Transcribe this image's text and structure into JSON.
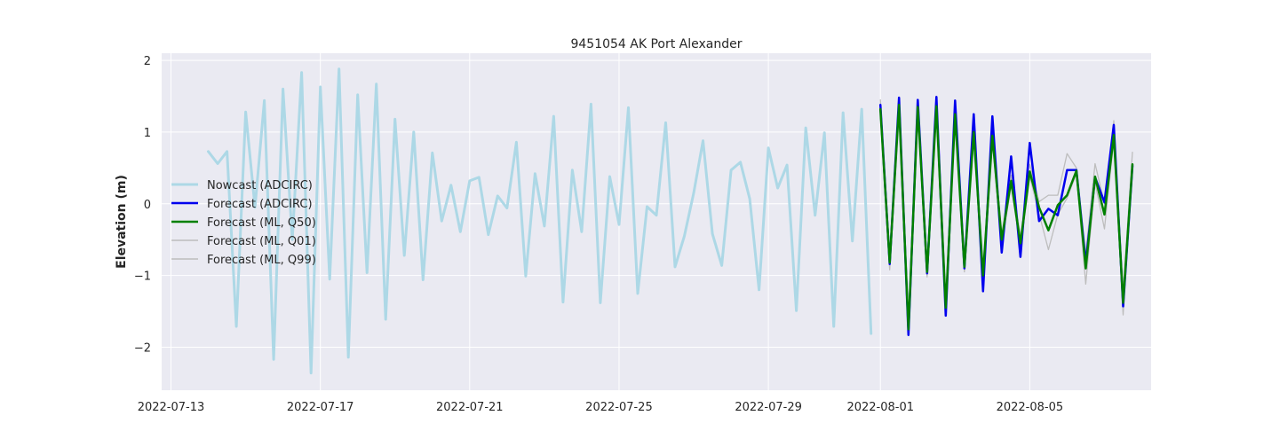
{
  "chart_data": {
    "type": "line",
    "title": "9451054 AK Port Alexander",
    "xlabel": "",
    "ylabel": "Elevation (m)",
    "x_type": "date",
    "xlim": [
      "2022-07-12T18:00",
      "2022-08-08T06:00"
    ],
    "ylim": [
      -2.6,
      2.1
    ],
    "x_ticks": [
      "2022-07-13",
      "2022-07-17",
      "2022-07-21",
      "2022-07-25",
      "2022-07-29",
      "2022-08-01",
      "2022-08-05"
    ],
    "y_ticks": [
      -2,
      -1,
      0,
      1,
      2
    ],
    "y_tick_labels": [
      "−2",
      "−1",
      "0",
      "1",
      "2"
    ],
    "grid": true,
    "legend_position": "center-left",
    "series": [
      {
        "name": "Nowcast (ADCIRC)",
        "color": "#add8e6",
        "x": [
          "2022-07-14T00:00",
          "2022-07-14T06:00",
          "2022-07-14T12:00",
          "2022-07-14T18:00",
          "2022-07-15T00:00",
          "2022-07-15T06:00",
          "2022-07-15T12:00",
          "2022-07-15T18:00",
          "2022-07-16T00:00",
          "2022-07-16T06:00",
          "2022-07-16T12:00",
          "2022-07-16T18:00",
          "2022-07-17T00:00",
          "2022-07-17T06:00",
          "2022-07-17T12:00",
          "2022-07-17T18:00",
          "2022-07-18T00:00",
          "2022-07-18T06:00",
          "2022-07-18T12:00",
          "2022-07-18T18:00",
          "2022-07-19T00:00",
          "2022-07-19T06:00",
          "2022-07-19T12:00",
          "2022-07-19T18:00",
          "2022-07-20T00:00",
          "2022-07-20T06:00",
          "2022-07-20T12:00",
          "2022-07-20T18:00",
          "2022-07-21T00:00",
          "2022-07-21T06:00",
          "2022-07-21T12:00",
          "2022-07-21T18:00",
          "2022-07-22T00:00",
          "2022-07-22T06:00",
          "2022-07-22T12:00",
          "2022-07-22T18:00",
          "2022-07-23T00:00",
          "2022-07-23T06:00",
          "2022-07-23T12:00",
          "2022-07-23T18:00",
          "2022-07-24T00:00",
          "2022-07-24T06:00",
          "2022-07-24T12:00",
          "2022-07-24T18:00",
          "2022-07-25T00:00",
          "2022-07-25T06:00",
          "2022-07-25T12:00",
          "2022-07-25T18:00",
          "2022-07-26T00:00",
          "2022-07-26T06:00",
          "2022-07-26T12:00",
          "2022-07-26T18:00",
          "2022-07-27T00:00",
          "2022-07-27T06:00",
          "2022-07-27T12:00",
          "2022-07-27T18:00",
          "2022-07-28T00:00",
          "2022-07-28T06:00",
          "2022-07-28T12:00",
          "2022-07-28T18:00",
          "2022-07-29T00:00",
          "2022-07-29T06:00",
          "2022-07-29T12:00",
          "2022-07-29T18:00",
          "2022-07-30T00:00",
          "2022-07-30T06:00",
          "2022-07-30T12:00",
          "2022-07-30T18:00",
          "2022-07-31T00:00",
          "2022-07-31T06:00",
          "2022-07-31T12:00",
          "2022-07-31T18:00"
        ],
        "y": [
          0.73,
          0.56,
          0.73,
          -1.71,
          1.28,
          -0.05,
          1.44,
          -2.17,
          1.6,
          -0.5,
          1.83,
          -2.36,
          1.63,
          -1.05,
          1.88,
          -2.14,
          1.52,
          -0.96,
          1.67,
          -1.61,
          1.18,
          -0.72,
          1.0,
          -1.06,
          0.71,
          -0.24,
          0.26,
          -0.39,
          0.32,
          0.37,
          -0.43,
          0.11,
          -0.06,
          0.86,
          -1.01,
          0.42,
          -0.31,
          1.22,
          -1.37,
          0.47,
          -0.39,
          1.39,
          -1.38,
          0.38,
          -0.29,
          1.34,
          -1.25,
          -0.04,
          -0.16,
          1.13,
          -0.88,
          -0.45,
          0.15,
          0.88,
          -0.42,
          -0.86,
          0.47,
          0.58,
          0.07,
          -1.2,
          0.78,
          0.22,
          0.54,
          -1.49,
          1.06,
          -0.16,
          0.99,
          -1.71,
          1.27,
          -0.52,
          1.32,
          -1.81
        ]
      },
      {
        "name": "Forecast (ADCIRC)",
        "color": "#0000ee",
        "x": [
          "2022-08-01T00:00",
          "2022-08-01T06:00",
          "2022-08-01T12:00",
          "2022-08-01T18:00",
          "2022-08-02T00:00",
          "2022-08-02T06:00",
          "2022-08-02T12:00",
          "2022-08-02T18:00",
          "2022-08-03T00:00",
          "2022-08-03T06:00",
          "2022-08-03T12:00",
          "2022-08-03T18:00",
          "2022-08-04T00:00",
          "2022-08-04T06:00",
          "2022-08-04T12:00",
          "2022-08-04T18:00",
          "2022-08-05T00:00",
          "2022-08-05T06:00",
          "2022-08-05T12:00",
          "2022-08-05T18:00",
          "2022-08-06T00:00",
          "2022-08-06T06:00",
          "2022-08-06T12:00",
          "2022-08-06T18:00",
          "2022-08-07T00:00",
          "2022-08-07T06:00",
          "2022-08-07T12:00",
          "2022-08-07T18:00"
        ],
        "y": [
          1.38,
          -0.84,
          1.48,
          -1.83,
          1.45,
          -0.97,
          1.49,
          -1.56,
          1.44,
          -0.9,
          1.25,
          -1.22,
          1.22,
          -0.68,
          0.66,
          -0.74,
          0.85,
          -0.24,
          -0.07,
          -0.16,
          0.47,
          0.47,
          -0.82,
          0.37,
          0.02,
          1.1,
          -1.43,
          0.53
        ]
      },
      {
        "name": "Forecast (ML, Q50)",
        "color": "#008000",
        "x": [
          "2022-08-01T00:00",
          "2022-08-01T06:00",
          "2022-08-01T12:00",
          "2022-08-01T18:00",
          "2022-08-02T00:00",
          "2022-08-02T06:00",
          "2022-08-02T12:00",
          "2022-08-02T18:00",
          "2022-08-03T00:00",
          "2022-08-03T06:00",
          "2022-08-03T12:00",
          "2022-08-03T18:00",
          "2022-08-04T00:00",
          "2022-08-04T06:00",
          "2022-08-04T12:00",
          "2022-08-04T18:00",
          "2022-08-05T00:00",
          "2022-08-05T06:00",
          "2022-08-05T12:00",
          "2022-08-05T18:00",
          "2022-08-06T00:00",
          "2022-08-06T06:00",
          "2022-08-06T12:00",
          "2022-08-06T18:00",
          "2022-08-07T00:00",
          "2022-08-07T06:00",
          "2022-08-07T12:00",
          "2022-08-07T18:00"
        ],
        "y": [
          1.32,
          -0.82,
          1.38,
          -1.75,
          1.35,
          -0.95,
          1.36,
          -1.45,
          1.25,
          -0.88,
          1.0,
          -1.0,
          0.95,
          -0.5,
          0.32,
          -0.55,
          0.45,
          -0.05,
          -0.37,
          -0.02,
          0.12,
          0.46,
          -0.9,
          0.38,
          -0.15,
          0.96,
          -1.38,
          0.55
        ]
      },
      {
        "name": "Forecast (ML, Q01)",
        "color": "#bdbdbd",
        "x": [
          "2022-08-01T00:00",
          "2022-08-01T06:00",
          "2022-08-01T12:00",
          "2022-08-01T18:00",
          "2022-08-02T00:00",
          "2022-08-02T06:00",
          "2022-08-02T12:00",
          "2022-08-02T18:00",
          "2022-08-03T00:00",
          "2022-08-03T06:00",
          "2022-08-03T12:00",
          "2022-08-03T18:00",
          "2022-08-04T00:00",
          "2022-08-04T06:00",
          "2022-08-04T12:00",
          "2022-08-04T18:00",
          "2022-08-05T00:00",
          "2022-08-05T06:00",
          "2022-08-05T12:00",
          "2022-08-05T18:00",
          "2022-08-06T00:00",
          "2022-08-06T06:00",
          "2022-08-06T12:00",
          "2022-08-06T18:00",
          "2022-08-07T00:00",
          "2022-08-07T06:00",
          "2022-08-07T12:00",
          "2022-08-07T18:00"
        ],
        "y": [
          1.25,
          -0.92,
          1.3,
          -1.8,
          1.28,
          -1.02,
          1.28,
          -1.52,
          1.18,
          -0.95,
          0.92,
          -1.06,
          0.88,
          -0.58,
          0.26,
          -0.62,
          0.38,
          -0.14,
          -0.64,
          -0.15,
          0.08,
          0.42,
          -1.12,
          0.3,
          -0.35,
          0.9,
          -1.55,
          0.48
        ]
      },
      {
        "name": "Forecast (ML, Q99)",
        "color": "#bdbdbd",
        "x": [
          "2022-08-01T00:00",
          "2022-08-01T06:00",
          "2022-08-01T12:00",
          "2022-08-01T18:00",
          "2022-08-02T00:00",
          "2022-08-02T06:00",
          "2022-08-02T12:00",
          "2022-08-02T18:00",
          "2022-08-03T00:00",
          "2022-08-03T06:00",
          "2022-08-03T12:00",
          "2022-08-03T18:00",
          "2022-08-04T00:00",
          "2022-08-04T06:00",
          "2022-08-04T12:00",
          "2022-08-04T18:00",
          "2022-08-05T00:00",
          "2022-08-05T06:00",
          "2022-08-05T12:00",
          "2022-08-05T18:00",
          "2022-08-06T00:00",
          "2022-08-06T06:00",
          "2022-08-06T12:00",
          "2022-08-06T18:00",
          "2022-08-07T00:00",
          "2022-08-07T06:00",
          "2022-08-07T12:00",
          "2022-08-07T18:00"
        ],
        "y": [
          1.45,
          -0.72,
          1.45,
          -1.68,
          1.42,
          -0.88,
          1.45,
          -1.36,
          1.32,
          -0.8,
          1.1,
          -0.92,
          1.02,
          -0.42,
          0.4,
          -0.46,
          0.55,
          0.03,
          0.12,
          0.12,
          0.7,
          0.5,
          -0.7,
          0.56,
          0.0,
          1.16,
          -1.22,
          0.72
        ]
      }
    ]
  }
}
